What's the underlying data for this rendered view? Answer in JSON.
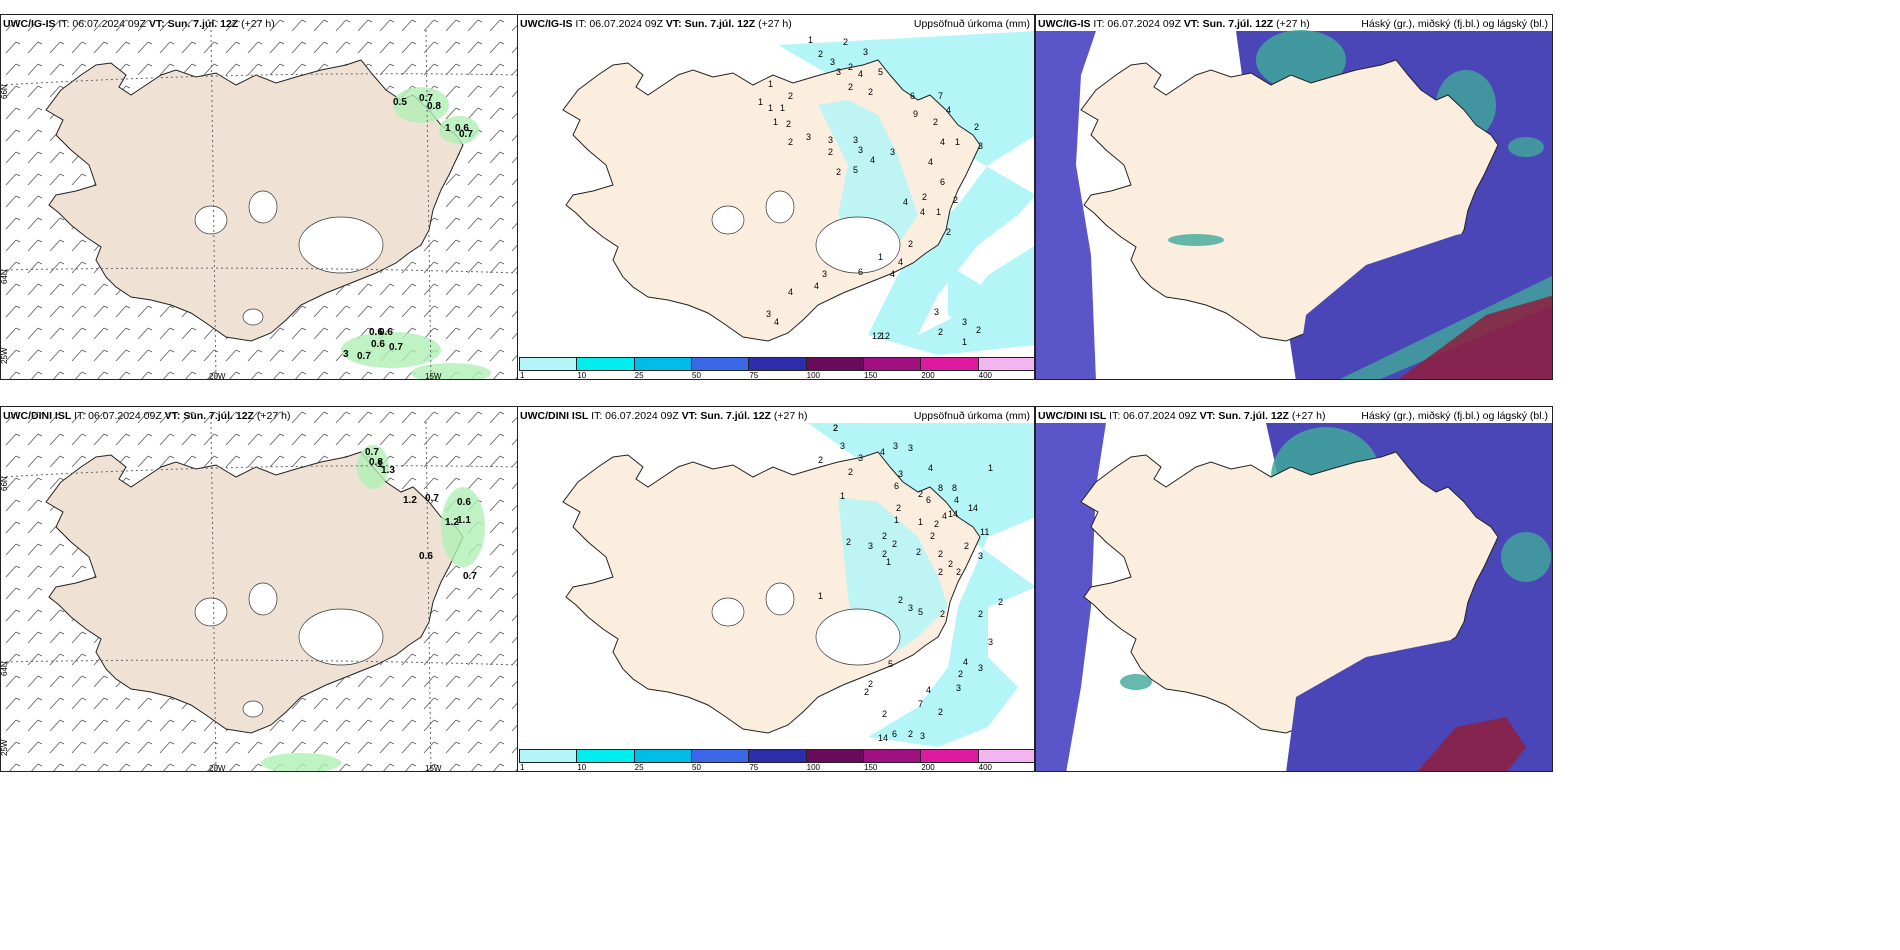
{
  "header": {
    "run_time": "IT: 06.07.2024 09Z",
    "valid_label": "VT:",
    "valid_time": "Sun. 7.júl. 12Z",
    "lead": "(+27 h)"
  },
  "rows": [
    {
      "model": "UWC/IG-IS"
    },
    {
      "model": "UWC/DINI ISL"
    }
  ],
  "titles": {
    "precip": "Uppsöfnuð úrkoma (mm)",
    "cloud": "Háský (gr.), miðský (fj.bl.) og lágský (bl.)"
  },
  "axis_labels": {
    "lat66": "66N",
    "lat64": "64N",
    "lon25": "25W",
    "lon20": "20W",
    "lon15": "15W"
  },
  "colorbar": {
    "ticks": [
      "1",
      "10",
      "25",
      "50",
      "75",
      "100",
      "150",
      "200",
      "400"
    ],
    "colors": [
      "#b4f5f8",
      "#00eef0",
      "#00bde8",
      "#3a68e8",
      "#2b2ea8",
      "#6a0a5a",
      "#a01080",
      "#e01aa0",
      "#f4b4f0"
    ]
  },
  "wind_values": {
    "ig": [
      "0.5",
      "0.7",
      "0.8",
      "1",
      "0.6",
      "0.7",
      "0.6",
      "0.6",
      "0.6",
      "0.7",
      "3",
      "0.7"
    ],
    "dini": [
      "0.7",
      "0.8",
      "1",
      "1.3",
      "1.2",
      "0.7",
      "0.6",
      "1.2",
      "1.1",
      "0.6",
      "0.7"
    ]
  },
  "precip_values": {
    "ig": [
      "1",
      "2",
      "3",
      "2",
      "3",
      "2",
      "3",
      "4",
      "5",
      "2",
      "2",
      "1",
      "1",
      "2",
      "1",
      "1",
      "1",
      "2",
      "2",
      "3",
      "3",
      "3",
      "2",
      "3",
      "4",
      "3",
      "2",
      "5",
      "6",
      "7",
      "9",
      "2",
      "2",
      "4",
      "3",
      "4",
      "1",
      "4",
      "6",
      "2",
      "2",
      "4",
      "4",
      "1",
      "2",
      "2",
      "4",
      "1",
      "6",
      "4",
      "4",
      "3",
      "4",
      "3",
      "4",
      "12",
      "12",
      "3",
      "2",
      "3",
      "2",
      "1"
    ],
    "dini": [
      "2",
      "3",
      "3",
      "4",
      "3",
      "3",
      "2",
      "2",
      "3",
      "4",
      "6",
      "2",
      "6",
      "8",
      "8",
      "4",
      "1",
      "4",
      "14",
      "14",
      "11",
      "1",
      "2",
      "1",
      "1",
      "2",
      "2",
      "2",
      "2",
      "2",
      "3",
      "2",
      "1",
      "2",
      "2",
      "2",
      "3",
      "2",
      "2",
      "2",
      "1",
      "2",
      "3",
      "5",
      "2",
      "2",
      "2",
      "3",
      "4",
      "2",
      "5",
      "2",
      "7",
      "2",
      "3",
      "2",
      "4",
      "3",
      "14",
      "6",
      "2",
      "3",
      "2",
      "2"
    ]
  }
}
